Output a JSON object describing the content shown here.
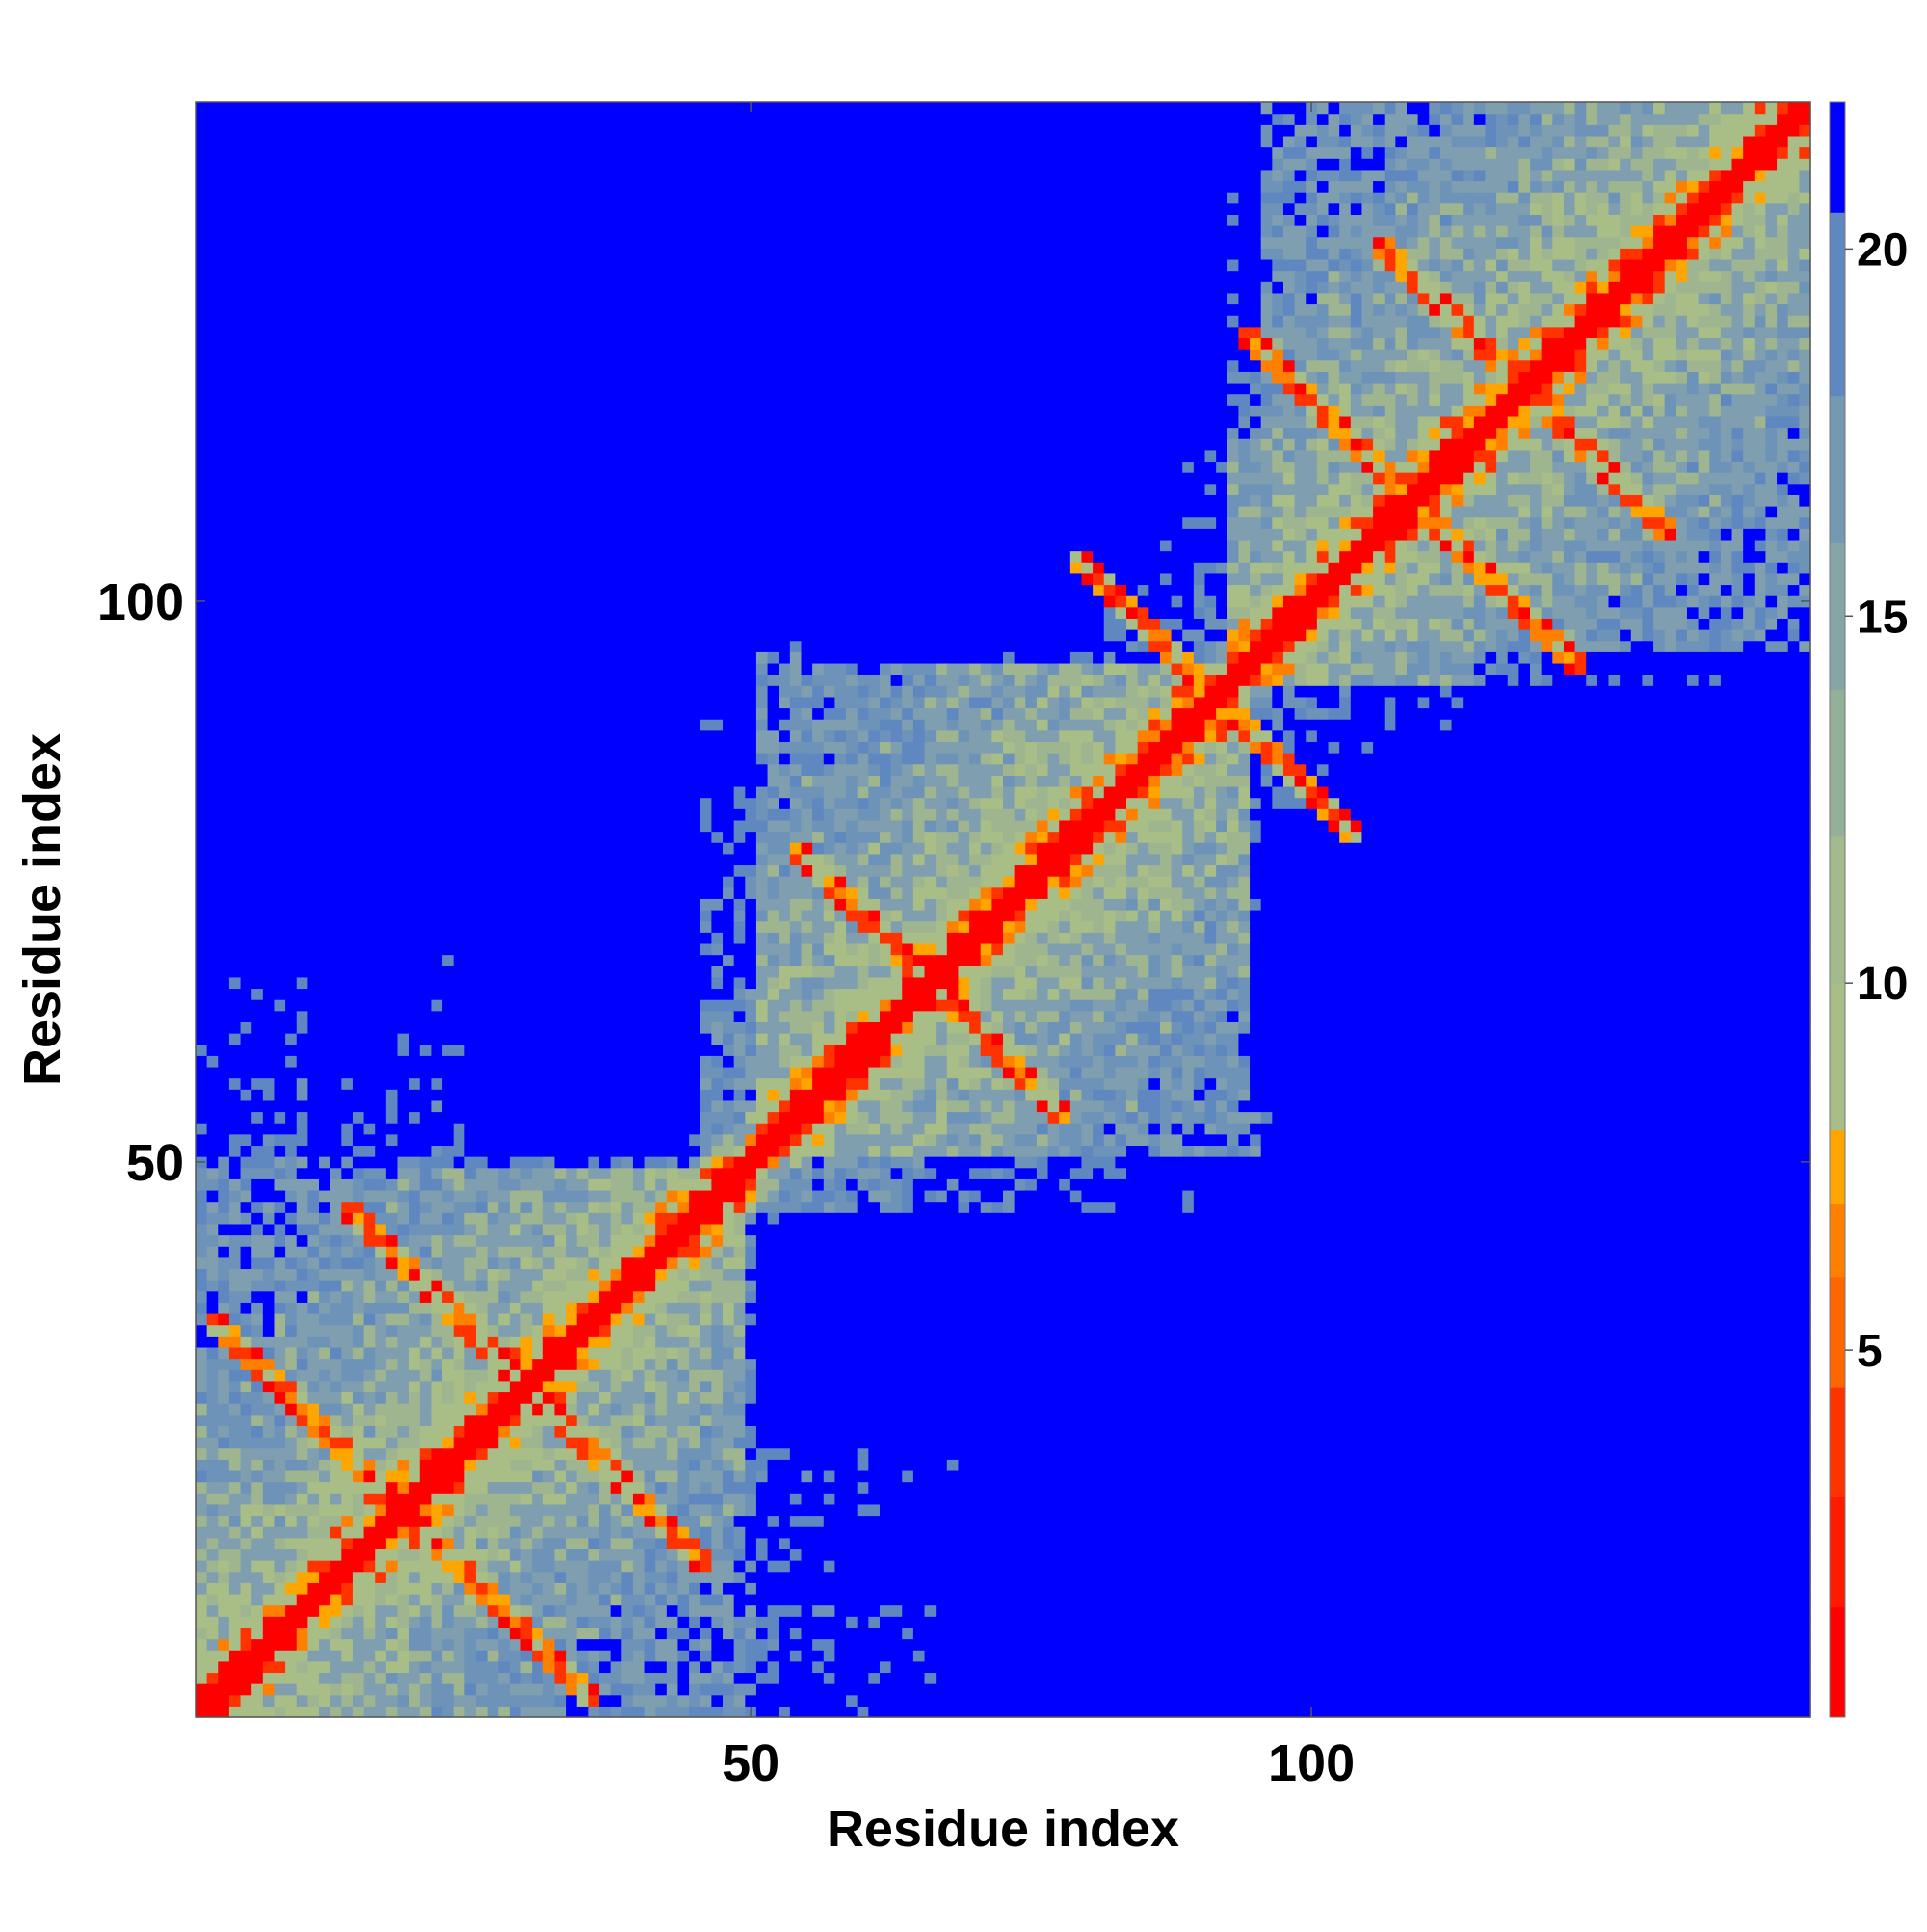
{
  "chart_data": {
    "type": "heatmap",
    "title": "",
    "xlabel": "Residue index",
    "ylabel": "Residue index",
    "n_residues": 144,
    "xlim": [
      1,
      144
    ],
    "ylim": [
      1,
      144
    ],
    "x_ticks": [
      {
        "value": 50,
        "label": "50"
      },
      {
        "value": 100,
        "label": "100"
      }
    ],
    "y_ticks": [
      {
        "value": 50,
        "label": "50"
      },
      {
        "value": 100,
        "label": "100"
      }
    ],
    "colorbar": {
      "range": [
        0,
        22
      ],
      "ticks": [
        {
          "value": 5,
          "label": "5"
        },
        {
          "value": 10,
          "label": "10"
        },
        {
          "value": 15,
          "label": "15"
        },
        {
          "value": 20,
          "label": "20"
        }
      ],
      "stops": [
        {
          "value": 0,
          "color": "#ff0000"
        },
        {
          "value": 4,
          "color": "#ff3300"
        },
        {
          "value": 6,
          "color": "#ff8000"
        },
        {
          "value": 8,
          "color": "#ffa500"
        },
        {
          "value": 8.01,
          "color": "#9fbf8a"
        },
        {
          "value": 12,
          "color": "#a9be86"
        },
        {
          "value": 15,
          "color": "#7f9fb0"
        },
        {
          "value": 20,
          "color": "#5f87c0"
        },
        {
          "value": 20.5,
          "color": "#0000ff"
        },
        {
          "value": 22,
          "color": "#0000ff"
        }
      ]
    },
    "colors": {
      "near": "#ff0000",
      "orange": "#ff9900",
      "mid": "#a9be86",
      "far": "#5f87c0",
      "cutoff": "#0000ff"
    },
    "distance_cutoff": 20.5,
    "domains": [
      [
        1,
        50
      ],
      [
        51,
        95
      ],
      [
        96,
        144
      ]
    ]
  }
}
